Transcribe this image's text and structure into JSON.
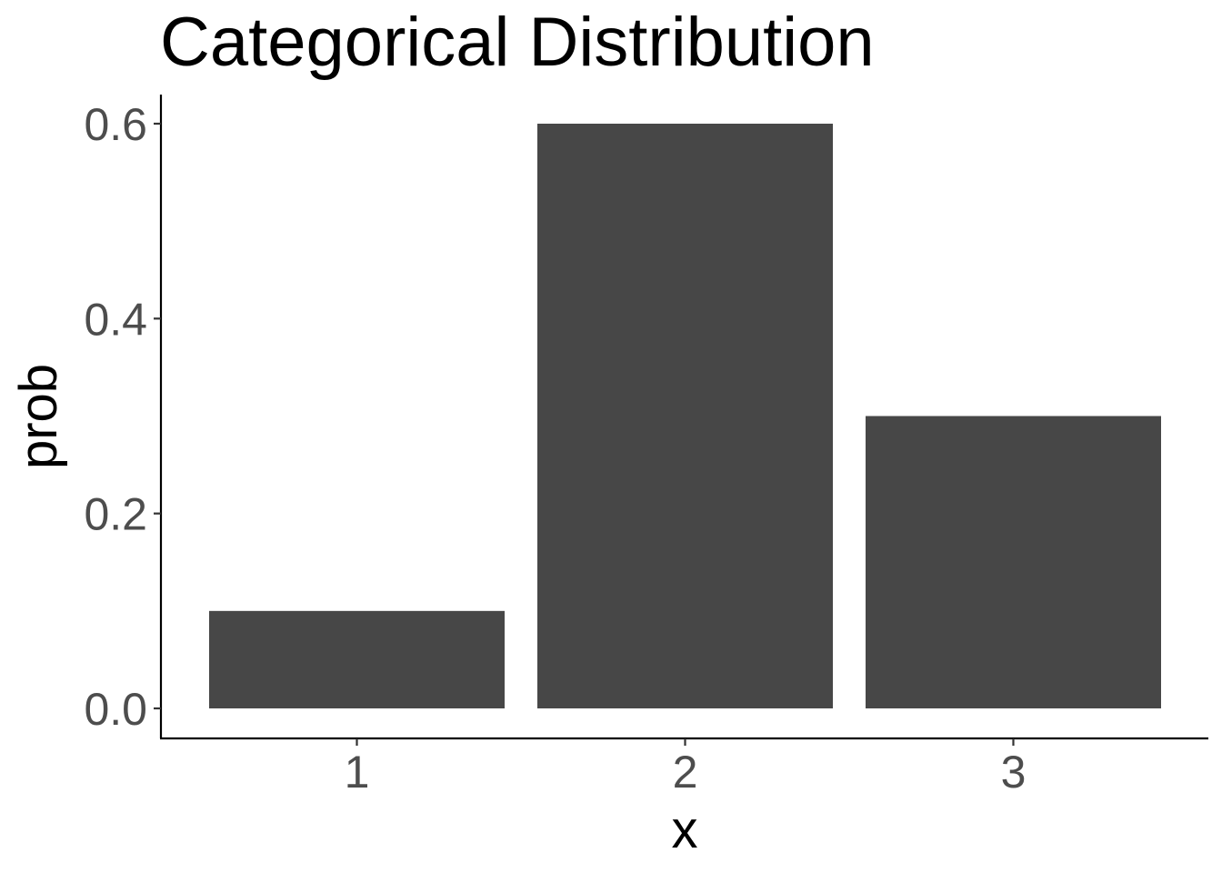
{
  "chart_data": {
    "type": "bar",
    "title": "Categorical Distribution",
    "xlabel": "x",
    "ylabel": "prob",
    "categories": [
      "1",
      "2",
      "3"
    ],
    "values": [
      0.1,
      0.6,
      0.3
    ],
    "ylim": [
      0,
      0.6
    ],
    "yticks": [
      "0.0",
      "0.2",
      "0.4",
      "0.6"
    ],
    "bar_color": "#474747",
    "grid": false,
    "legend": "none"
  }
}
